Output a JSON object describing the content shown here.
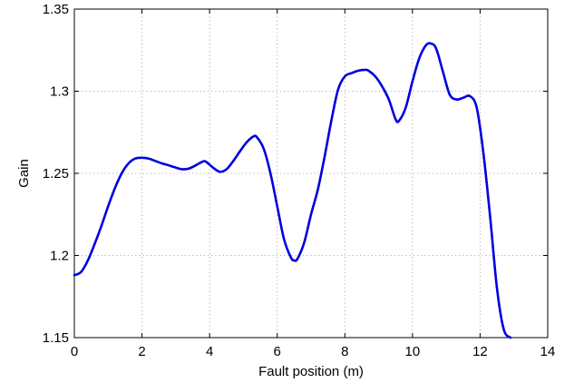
{
  "chart_data": {
    "type": "line",
    "title": "",
    "xlabel": "Fault position (m)",
    "ylabel": "Gain",
    "xlim": [
      0,
      14
    ],
    "ylim": [
      1.15,
      1.35
    ],
    "xticks": [
      0,
      2,
      4,
      6,
      8,
      10,
      12,
      14
    ],
    "xtick_labels": [
      "0",
      "2",
      "4",
      "6",
      "8",
      "10",
      "12",
      "14"
    ],
    "yticks": [
      1.15,
      1.2,
      1.25,
      1.3,
      1.35
    ],
    "ytick_labels": [
      "1.15",
      "1.2",
      "1.25",
      "1.3",
      "1.35"
    ],
    "grid": true,
    "line_color": "#0000e0",
    "series": [
      {
        "x": [
          0,
          0.2,
          0.4,
          0.6,
          0.8,
          1.0,
          1.2,
          1.4,
          1.6,
          1.8,
          2.0,
          2.2,
          2.4,
          2.6,
          2.8,
          3.0,
          3.2,
          3.4,
          3.6,
          3.8,
          3.9,
          4.1,
          4.3,
          4.5,
          4.7,
          4.9,
          5.1,
          5.3,
          5.4,
          5.6,
          5.8,
          6.0,
          6.2,
          6.4,
          6.5,
          6.6,
          6.8,
          7.0,
          7.2,
          7.4,
          7.6,
          7.8,
          8.0,
          8.2,
          8.4,
          8.6,
          8.7,
          8.9,
          9.1,
          9.3,
          9.5,
          9.6,
          9.8,
          10.0,
          10.2,
          10.4,
          10.55,
          10.7,
          10.9,
          11.1,
          11.3,
          11.5,
          11.7,
          11.9,
          12.1,
          12.3,
          12.5,
          12.7,
          12.9
        ],
        "y": [
          1.188,
          1.19,
          1.197,
          1.207,
          1.218,
          1.23,
          1.241,
          1.25,
          1.256,
          1.259,
          1.2595,
          1.259,
          1.2575,
          1.256,
          1.2548,
          1.2535,
          1.2525,
          1.253,
          1.255,
          1.2572,
          1.257,
          1.2535,
          1.251,
          1.2525,
          1.2575,
          1.2635,
          1.269,
          1.2725,
          1.272,
          1.265,
          1.25,
          1.23,
          1.21,
          1.199,
          1.197,
          1.198,
          1.208,
          1.225,
          1.24,
          1.26,
          1.282,
          1.301,
          1.309,
          1.311,
          1.3125,
          1.313,
          1.3125,
          1.309,
          1.303,
          1.295,
          1.283,
          1.282,
          1.29,
          1.306,
          1.32,
          1.328,
          1.329,
          1.326,
          1.312,
          1.298,
          1.295,
          1.296,
          1.297,
          1.29,
          1.262,
          1.223,
          1.18,
          1.155,
          1.15
        ]
      }
    ]
  }
}
